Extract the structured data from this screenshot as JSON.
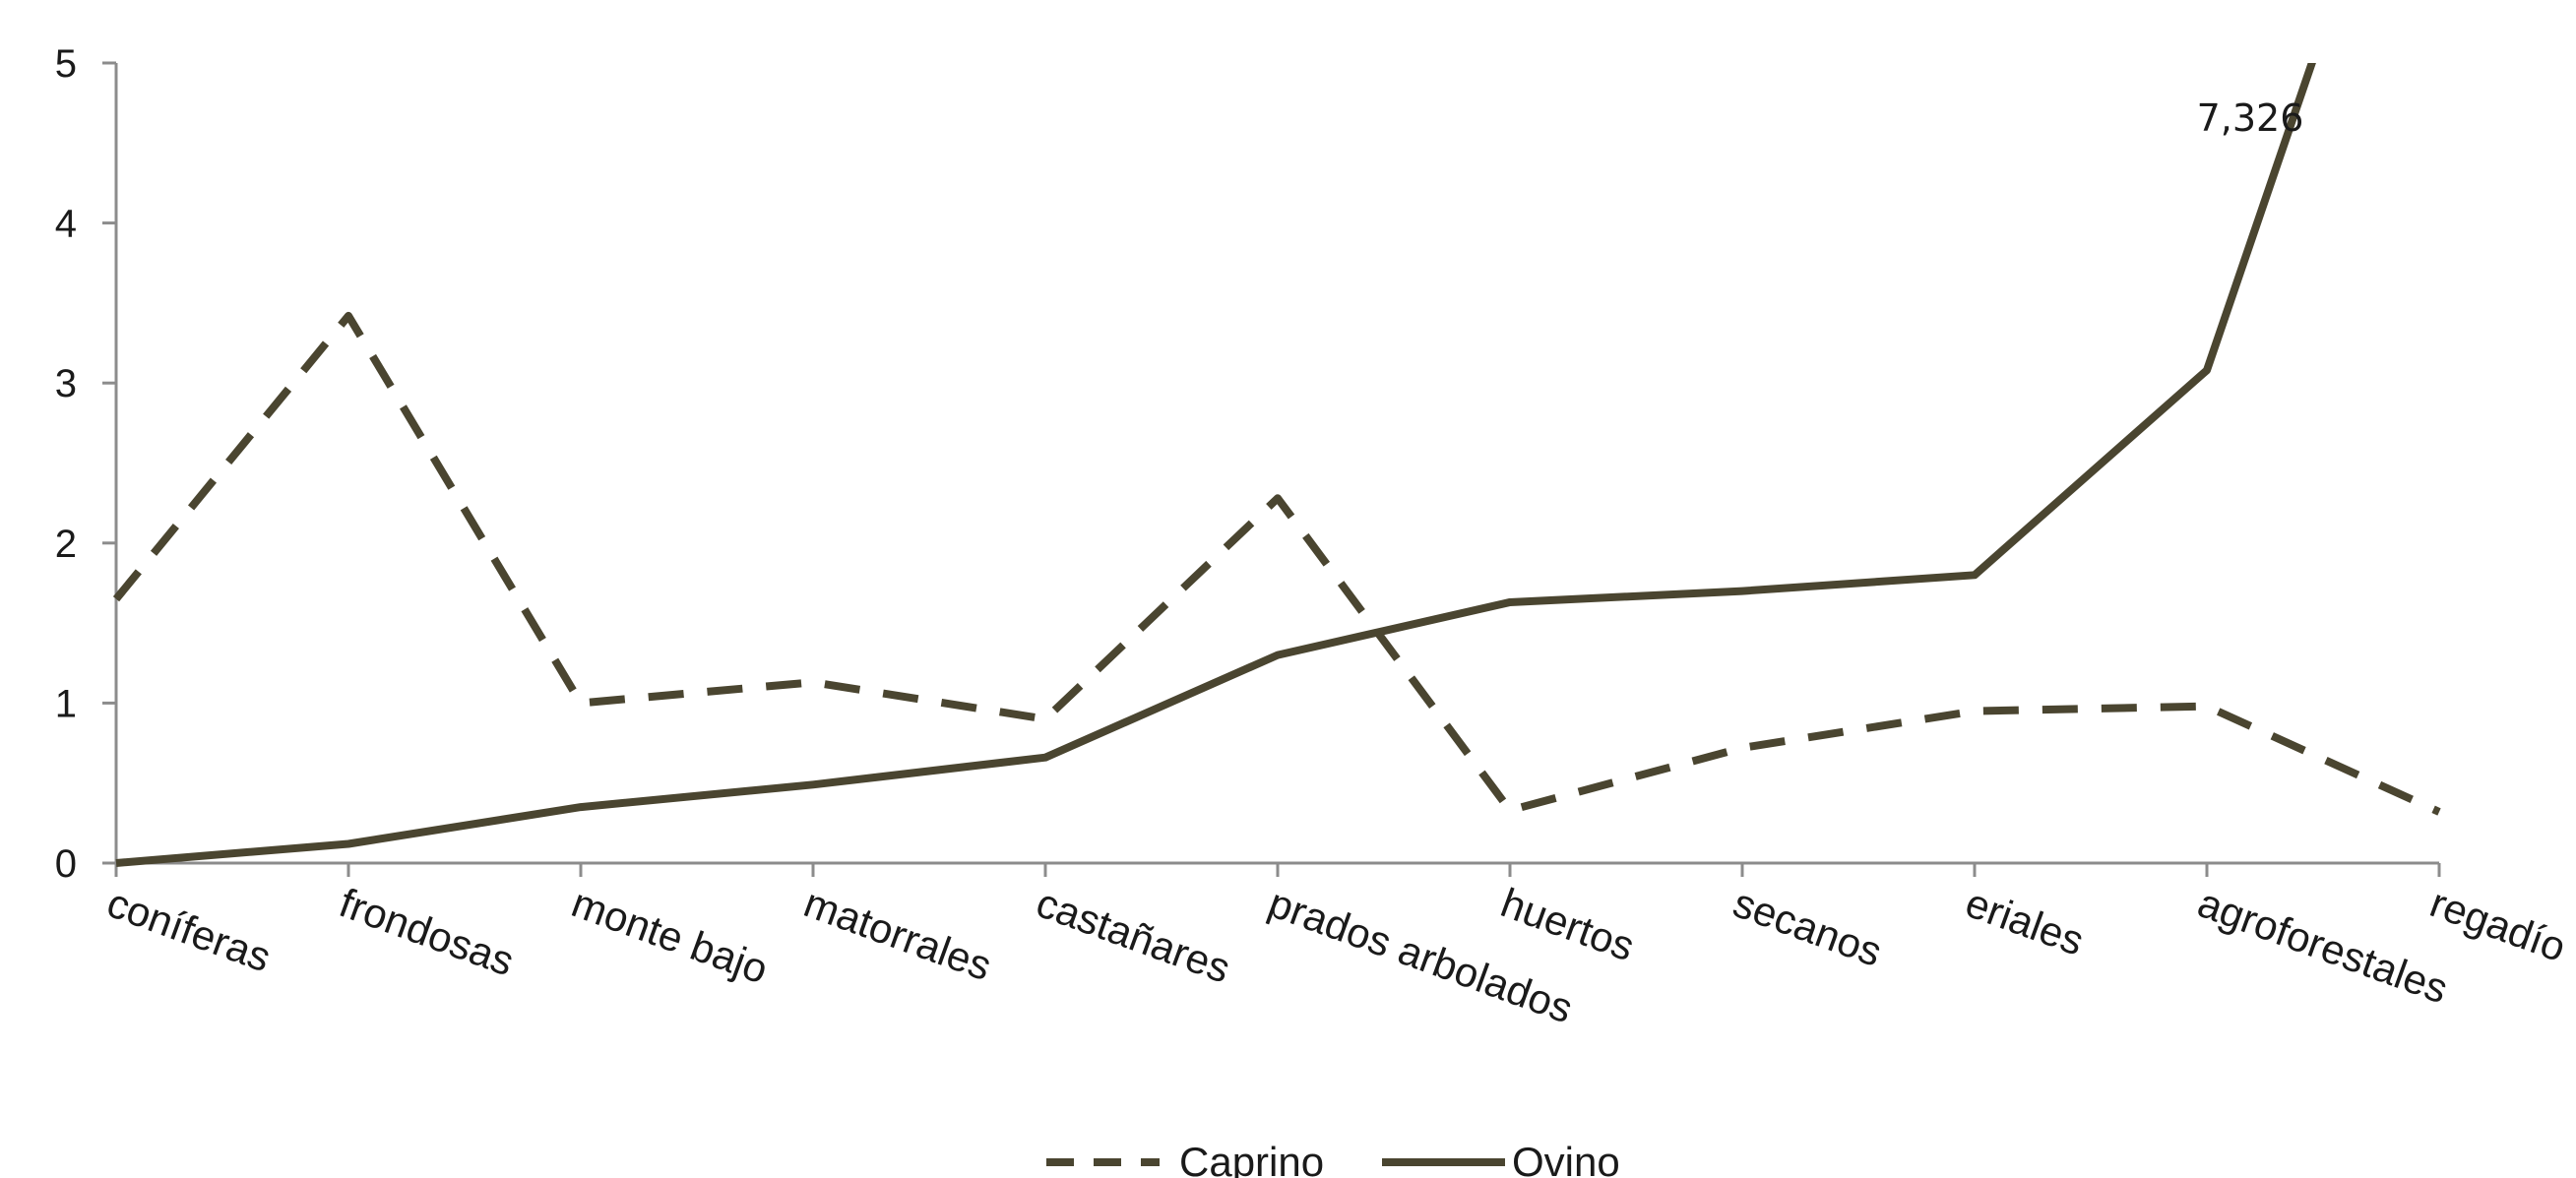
{
  "chart_data": {
    "type": "line",
    "categories": [
      "coníferas",
      "frondosas",
      "monte bajo",
      "matorrales",
      "castañares",
      "prados arbolados",
      "huertos",
      "secanos",
      "eriales",
      "agroforestales",
      "regadío"
    ],
    "series": [
      {
        "name": "Caprino",
        "style": "dashed",
        "color": "#4a4530",
        "values": [
          1.65,
          3.42,
          1.0,
          1.13,
          0.9,
          2.28,
          0.33,
          0.72,
          0.95,
          0.98,
          0.32
        ]
      },
      {
        "name": "Ovino",
        "style": "solid",
        "color": "#4a4530",
        "values": [
          0.0,
          0.12,
          0.35,
          0.49,
          0.66,
          1.3,
          1.63,
          1.7,
          1.8,
          3.08,
          7.326
        ]
      }
    ],
    "annotations": [
      {
        "text": "7,326",
        "category": "regadío",
        "series": "Ovino"
      }
    ],
    "ylim": [
      0,
      5
    ],
    "yticks": [
      "0",
      "1",
      "2",
      "3",
      "4",
      "5"
    ],
    "grid": false,
    "legend": "bottom"
  }
}
